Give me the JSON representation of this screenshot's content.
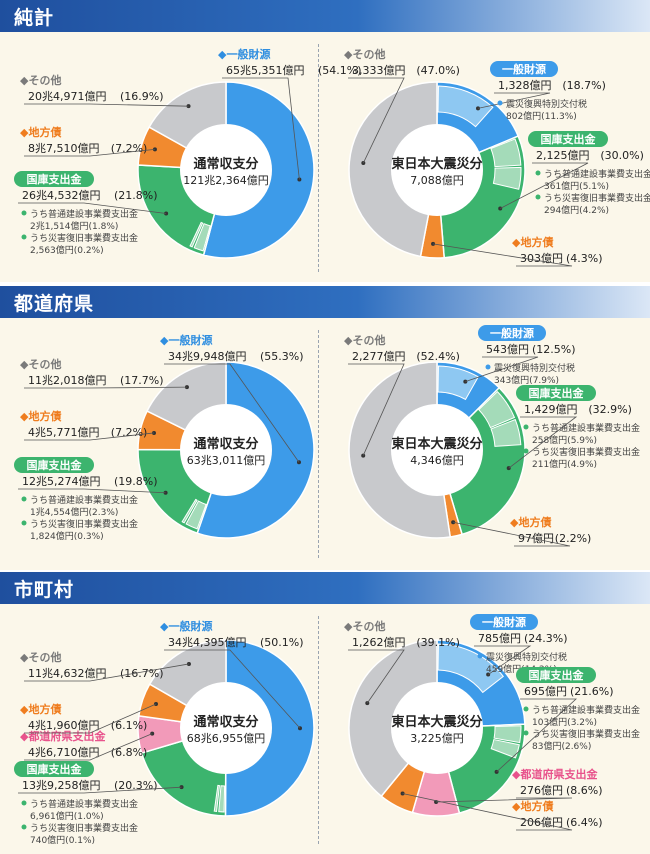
{
  "colors": {
    "general": "#3d9be9",
    "general_light": "#8ec8f2",
    "treasury": "#3cb46e",
    "treasury_light": "#a4dbb9",
    "bond": "#f18a2f",
    "prefecture": "#f29ab9",
    "other": "#c8c9cc",
    "label_pink": "#e8538c",
    "label_orange": "#ef7d1f",
    "label_blue": "#2f8ee0",
    "label_gray": "#7a7a7a"
  },
  "sections": [
    {
      "id": "total",
      "title": "純計"
    },
    {
      "id": "prefecture",
      "title": "都道府県"
    },
    {
      "id": "municipality",
      "title": "市町村"
    }
  ],
  "chart_data": [
    {
      "type": "pie",
      "section": "純計",
      "center": {
        "title": "通常収支分",
        "value": "121兆2,364億円"
      },
      "slices": [
        {
          "name": "一般財源",
          "share": 54.1,
          "amount": "65兆5,351億円",
          "pct": "(54.1%)",
          "color": "general"
        },
        {
          "name": "国庫支出金",
          "share": 21.8,
          "amount": "26兆4,532億円",
          "pct": "(21.8%)",
          "color": "treasury",
          "subs": [
            {
              "name": "うち普通建設事業費支出金",
              "share": 1.8,
              "amount": "2兆1,514億円(1.8%)"
            },
            {
              "name": "うち災害復旧事業費支出金",
              "share": 0.2,
              "amount": "2,563億円(0.2%)"
            }
          ]
        },
        {
          "name": "地方債",
          "share": 7.2,
          "amount": "8兆7,510億円",
          "pct": "(7.2%)",
          "color": "bond"
        },
        {
          "name": "その他",
          "share": 16.9,
          "amount": "20兆4,971億円",
          "pct": "(16.9%)",
          "color": "other"
        }
      ]
    },
    {
      "type": "pie",
      "section": "純計",
      "center": {
        "title": "東日本大震災分",
        "value": "7,088億円"
      },
      "slices": [
        {
          "name": "一般財源",
          "share": 18.7,
          "amount": "1,328億円",
          "pct": "(18.7%)",
          "color": "general",
          "subs": [
            {
              "name": "震災復興特別交付税",
              "share": 11.3,
              "amount": "802億円(11.3%)"
            }
          ]
        },
        {
          "name": "国庫支出金",
          "share": 30.0,
          "amount": "2,125億円",
          "pct": "(30.0%)",
          "color": "treasury",
          "subs": [
            {
              "name": "うち普通建設事業費支出金",
              "share": 5.1,
              "amount": "361億円(5.1%)"
            },
            {
              "name": "うち災害復旧事業費支出金",
              "share": 4.2,
              "amount": "294億円(4.2%)"
            }
          ]
        },
        {
          "name": "地方債",
          "share": 4.3,
          "amount": "303億円",
          "pct": "(4.3%)",
          "color": "bond"
        },
        {
          "name": "その他",
          "share": 47.0,
          "amount": "3,333億円",
          "pct": "(47.0%)",
          "color": "other"
        }
      ]
    },
    {
      "type": "pie",
      "section": "都道府県",
      "center": {
        "title": "通常収支分",
        "value": "63兆3,011億円"
      },
      "slices": [
        {
          "name": "一般財源",
          "share": 55.3,
          "amount": "34兆9,948億円",
          "pct": "(55.3%)",
          "color": "general"
        },
        {
          "name": "国庫支出金",
          "share": 19.8,
          "amount": "12兆5,274億円",
          "pct": "(19.8%)",
          "color": "treasury",
          "subs": [
            {
              "name": "うち普通建設事業費支出金",
              "share": 2.3,
              "amount": "1兆4,554億円(2.3%)"
            },
            {
              "name": "うち災害復旧事業費支出金",
              "share": 0.3,
              "amount": "1,824億円(0.3%)"
            }
          ]
        },
        {
          "name": "地方債",
          "share": 7.2,
          "amount": "4兆5,771億円",
          "pct": "(7.2%)",
          "color": "bond"
        },
        {
          "name": "その他",
          "share": 17.7,
          "amount": "11兆2,018億円",
          "pct": "(17.7%)",
          "color": "other"
        }
      ]
    },
    {
      "type": "pie",
      "section": "都道府県",
      "center": {
        "title": "東日本大震災分",
        "value": "4,346億円"
      },
      "slices": [
        {
          "name": "一般財源",
          "share": 12.5,
          "amount": "543億円",
          "pct": "(12.5%)",
          "color": "general",
          "subs": [
            {
              "name": "震災復興特別交付税",
              "share": 7.9,
              "amount": "343億円(7.9%)"
            }
          ]
        },
        {
          "name": "国庫支出金",
          "share": 32.9,
          "amount": "1,429億円",
          "pct": "(32.9%)",
          "color": "treasury",
          "subs": [
            {
              "name": "うち普通建設事業費支出金",
              "share": 5.9,
              "amount": "258億円(5.9%)"
            },
            {
              "name": "うち災害復旧事業費支出金",
              "share": 4.9,
              "amount": "211億円(4.9%)"
            }
          ]
        },
        {
          "name": "地方債",
          "share": 2.2,
          "amount": "97億円",
          "pct": "(2.2%)",
          "color": "bond"
        },
        {
          "name": "その他",
          "share": 52.4,
          "amount": "2,277億円",
          "pct": "(52.4%)",
          "color": "other"
        }
      ]
    },
    {
      "type": "pie",
      "section": "市町村",
      "center": {
        "title": "通常収支分",
        "value": "68兆6,955億円"
      },
      "slices": [
        {
          "name": "一般財源",
          "share": 50.1,
          "amount": "34兆4,395億円",
          "pct": "(50.1%)",
          "color": "general"
        },
        {
          "name": "国庫支出金",
          "share": 20.3,
          "amount": "13兆9,258億円",
          "pct": "(20.3%)",
          "color": "treasury",
          "subs": [
            {
              "name": "うち普通建設事業費支出金",
              "share": 1.0,
              "amount": "6,961億円(1.0%)"
            },
            {
              "name": "うち災害復旧事業費支出金",
              "share": 0.1,
              "amount": "740億円(0.1%)"
            }
          ]
        },
        {
          "name": "都道府県支出金",
          "share": 6.8,
          "amount": "4兆6,710億円",
          "pct": "(6.8%)",
          "color": "prefecture"
        },
        {
          "name": "地方債",
          "share": 6.1,
          "amount": "4兆1,960億円",
          "pct": "(6.1%)",
          "color": "bond"
        },
        {
          "name": "その他",
          "share": 16.7,
          "amount": "11兆4,632億円",
          "pct": "(16.7%)",
          "color": "other"
        }
      ]
    },
    {
      "type": "pie",
      "section": "市町村",
      "center": {
        "title": "東日本大震災分",
        "value": "3,225億円"
      },
      "slices": [
        {
          "name": "一般財源",
          "share": 24.3,
          "amount": "785億円",
          "pct": "(24.3%)",
          "color": "general",
          "subs": [
            {
              "name": "震災復興特別交付税",
              "share": 14.2,
              "amount": "459億円(14.2%)"
            }
          ]
        },
        {
          "name": "国庫支出金",
          "share": 21.6,
          "amount": "695億円",
          "pct": "(21.6%)",
          "color": "treasury",
          "subs": [
            {
              "name": "うち普通建設事業費支出金",
              "share": 3.2,
              "amount": "103億円(3.2%)"
            },
            {
              "name": "うち災害復旧事業費支出金",
              "share": 2.6,
              "amount": "83億円(2.6%)"
            }
          ]
        },
        {
          "name": "都道府県支出金",
          "share": 8.6,
          "amount": "276億円",
          "pct": "(8.6%)",
          "color": "prefecture"
        },
        {
          "name": "地方債",
          "share": 6.4,
          "amount": "206億円",
          "pct": "(6.4%)",
          "color": "bond"
        },
        {
          "name": "その他",
          "share": 39.1,
          "amount": "1,262億円",
          "pct": "(39.1%)",
          "color": "other"
        }
      ]
    }
  ]
}
